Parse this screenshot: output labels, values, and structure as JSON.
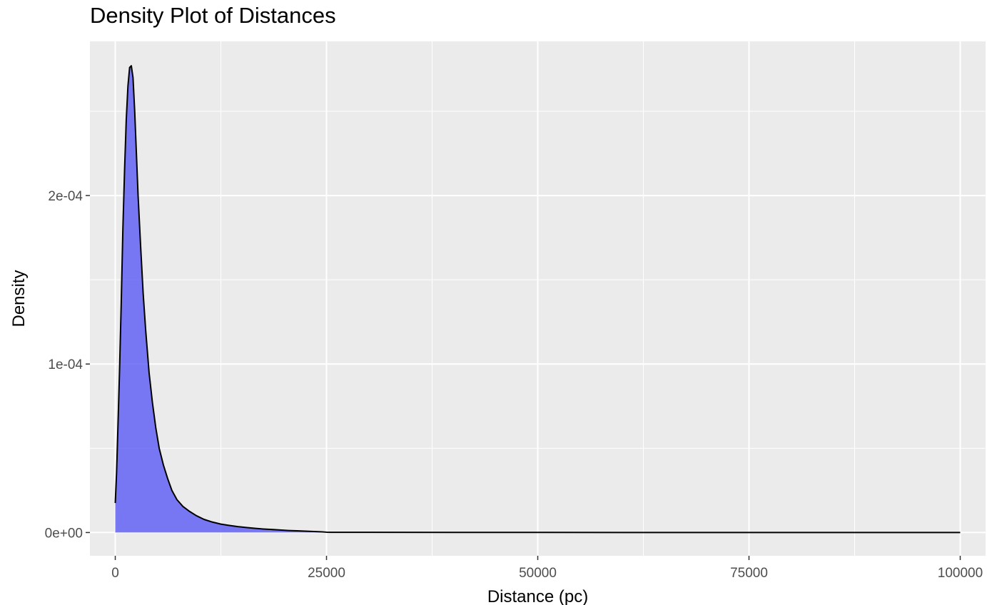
{
  "chart_data": {
    "type": "area",
    "title": "Density Plot of Distances",
    "xlabel": "Distance (pc)",
    "ylabel": "Density",
    "xlim": [
      -3000,
      103000
    ],
    "ylim": [
      -1.38e-05,
      0.0002915
    ],
    "x_ticks": [
      0,
      25000,
      50000,
      75000,
      100000
    ],
    "x_tick_labels": [
      "0",
      "25000",
      "50000",
      "75000",
      "100000"
    ],
    "y_ticks": [
      0,
      0.0001,
      0.0002
    ],
    "y_tick_labels": [
      "0e+00",
      "1e-04",
      "2e-04"
    ],
    "x_minor_ticks": [
      12500,
      37500,
      62500,
      87500
    ],
    "y_minor_ticks": [
      5e-05,
      0.00015,
      0.00025
    ],
    "grid": true,
    "fill_color": "#5050f5",
    "fill_opacity": 0.75,
    "line_color": "#000000",
    "panel_background": "#ebebeb",
    "grid_color": "#ffffff",
    "series": [
      {
        "x": [
          0,
          150,
          300,
          500,
          700,
          900,
          1100,
          1300,
          1500,
          1700,
          1900,
          2100,
          2300,
          2500,
          2700,
          3000,
          3300,
          3600,
          4000,
          4400,
          4800,
          5200,
          5700,
          6200,
          6700,
          7300,
          8000,
          8800,
          9600,
          10500,
          11500,
          12500,
          13500,
          14500,
          15500,
          16500,
          17500,
          18500,
          19500,
          20500,
          21500,
          22500,
          23500,
          24500,
          25000,
          25500,
          30000,
          40000,
          50000,
          60000,
          70000,
          80000,
          90000,
          100000
        ],
        "y": [
          1.75e-05,
          3.5e-05,
          6e-05,
          9.5e-05,
          0.000135,
          0.00018,
          0.000215,
          0.000245,
          0.000265,
          0.000276,
          0.000277,
          0.00027,
          0.00025,
          0.000225,
          0.0002,
          0.00017,
          0.000142,
          0.00012,
          9.5e-05,
          7.7e-05,
          6.2e-05,
          5e-05,
          4e-05,
          3.2e-05,
          2.5e-05,
          1.95e-05,
          1.55e-05,
          1.25e-05,
          1e-05,
          7.8e-06,
          6.2e-06,
          5e-06,
          4.2e-06,
          3.5e-06,
          3e-06,
          2.5e-06,
          2.1e-06,
          1.8e-06,
          1.5e-06,
          1.2e-06,
          1e-06,
          8e-07,
          6e-07,
          4e-07,
          2e-07,
          1e-07,
          1e-07,
          5e-08,
          5e-08,
          3e-08,
          3e-08,
          2e-08,
          2e-08,
          2e-08
        ]
      }
    ]
  }
}
